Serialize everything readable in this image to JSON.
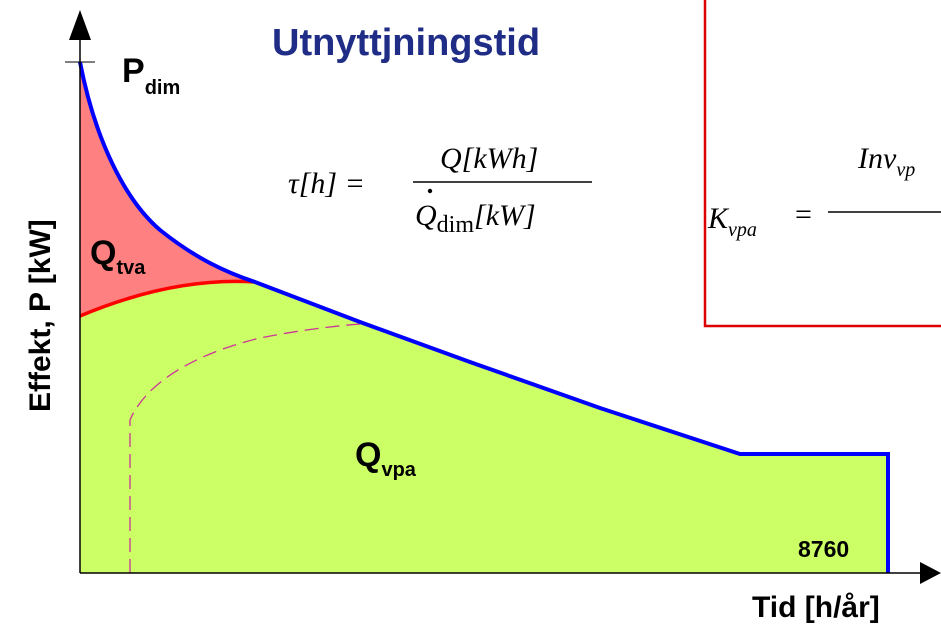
{
  "title": "Utnyttjningstid",
  "y_axis_label": "Effekt, P [kW]",
  "x_axis_label": "Tid [h/år]",
  "p_dim": {
    "main": "P",
    "sub": "dim"
  },
  "q_tva": {
    "main": "Q",
    "sub": "tva"
  },
  "q_vpa": {
    "main": "Q",
    "sub": "vpa"
  },
  "hours_label": "8760",
  "formula_tau": {
    "lhs": "τ[h] =",
    "numerator": "Q[kWh]",
    "denominator_q": "Q",
    "denominator_sub": "dim",
    "denominator_unit": "[kW]"
  },
  "formula_k": {
    "lhs_main": "K",
    "lhs_sub": "vpa",
    "equals": "=",
    "numerator": "Inv",
    "numerator_sub": "vp"
  },
  "colors": {
    "title": "#1f2d86",
    "duration_curve": "#0000ff",
    "peak_area_fill": "#ff8080",
    "base_area_fill": "#ccff66",
    "heat_pump_curve": "#ff0000",
    "dashed_curve": "#cc3399",
    "formula_box_border": "#dd0000"
  }
}
